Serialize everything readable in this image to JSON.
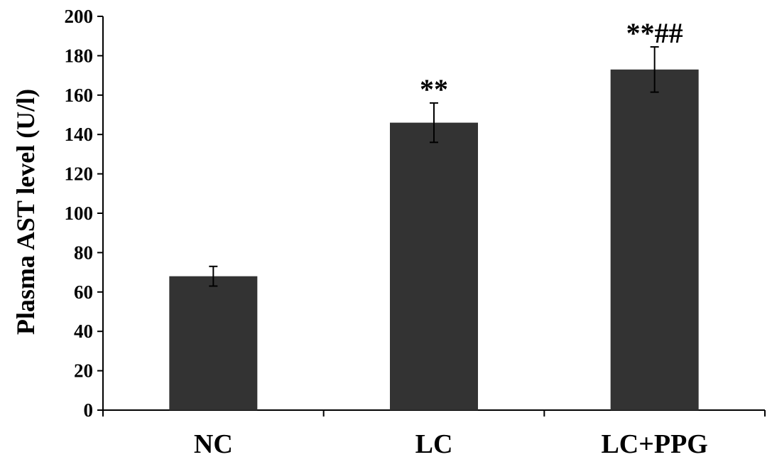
{
  "chart_data": {
    "type": "bar",
    "title": "",
    "xlabel": "",
    "ylabel": "Plasma AST level (U/l)",
    "categories": [
      "NC",
      "LC",
      "LC+PPG"
    ],
    "values": [
      68,
      146,
      173
    ],
    "errors": [
      5,
      10,
      11.5
    ],
    "annotations": [
      "",
      "**",
      "**##"
    ],
    "ylim": [
      0,
      200
    ],
    "yticks": [
      "0",
      "20",
      "40",
      "60",
      "80",
      "100",
      "120",
      "140",
      "160",
      "180",
      "200"
    ],
    "grid": false,
    "legend": "none",
    "colors": {
      "bar": "#333333",
      "axis": "#000000",
      "background": "#ffffff"
    }
  }
}
